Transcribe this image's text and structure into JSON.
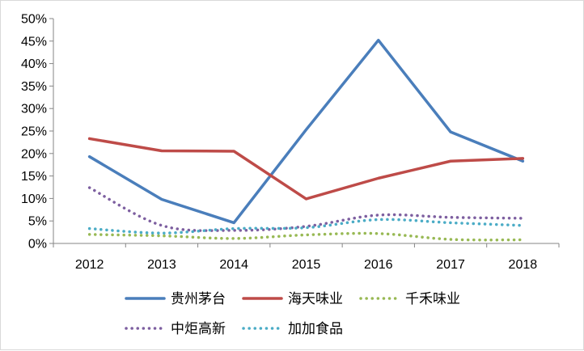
{
  "chart_data": {
    "type": "line",
    "title": "",
    "xlabel": "",
    "ylabel": "",
    "x": [
      "2012",
      "2013",
      "2014",
      "2015",
      "2016",
      "2017",
      "2018"
    ],
    "ylim": [
      0,
      0.5
    ],
    "yticks": [
      0,
      0.05,
      0.1,
      0.15,
      0.2,
      0.25,
      0.3,
      0.35,
      0.4,
      0.45,
      0.5
    ],
    "ytick_labels": [
      "0%",
      "5%",
      "10%",
      "15%",
      "20%",
      "25%",
      "30%",
      "35%",
      "40%",
      "45%",
      "50%"
    ],
    "grid": false,
    "legend_position": "bottom",
    "series": [
      {
        "name": "贵州茅台",
        "color": "#4a7ebb",
        "style": "solid",
        "values": [
          0.193,
          0.098,
          0.046,
          0.253,
          0.452,
          0.248,
          0.183
        ]
      },
      {
        "name": "海天味业",
        "color": "#be4b48",
        "style": "solid",
        "values": [
          0.233,
          0.206,
          0.205,
          0.099,
          0.145,
          0.183,
          0.189
        ]
      },
      {
        "name": "千禾味业",
        "color": "#98b954",
        "style": "dotted",
        "values": [
          0.02,
          0.017,
          0.011,
          0.019,
          0.022,
          0.009,
          0.008
        ]
      },
      {
        "name": "中炬高新",
        "color": "#7d5fa0",
        "style": "dotted",
        "values": [
          0.124,
          0.04,
          0.029,
          0.038,
          0.063,
          0.058,
          0.056
        ]
      },
      {
        "name": "加加食品",
        "color": "#4bacc6",
        "style": "dotted",
        "values": [
          0.033,
          0.023,
          0.033,
          0.035,
          0.053,
          0.046,
          0.04
        ]
      }
    ]
  }
}
